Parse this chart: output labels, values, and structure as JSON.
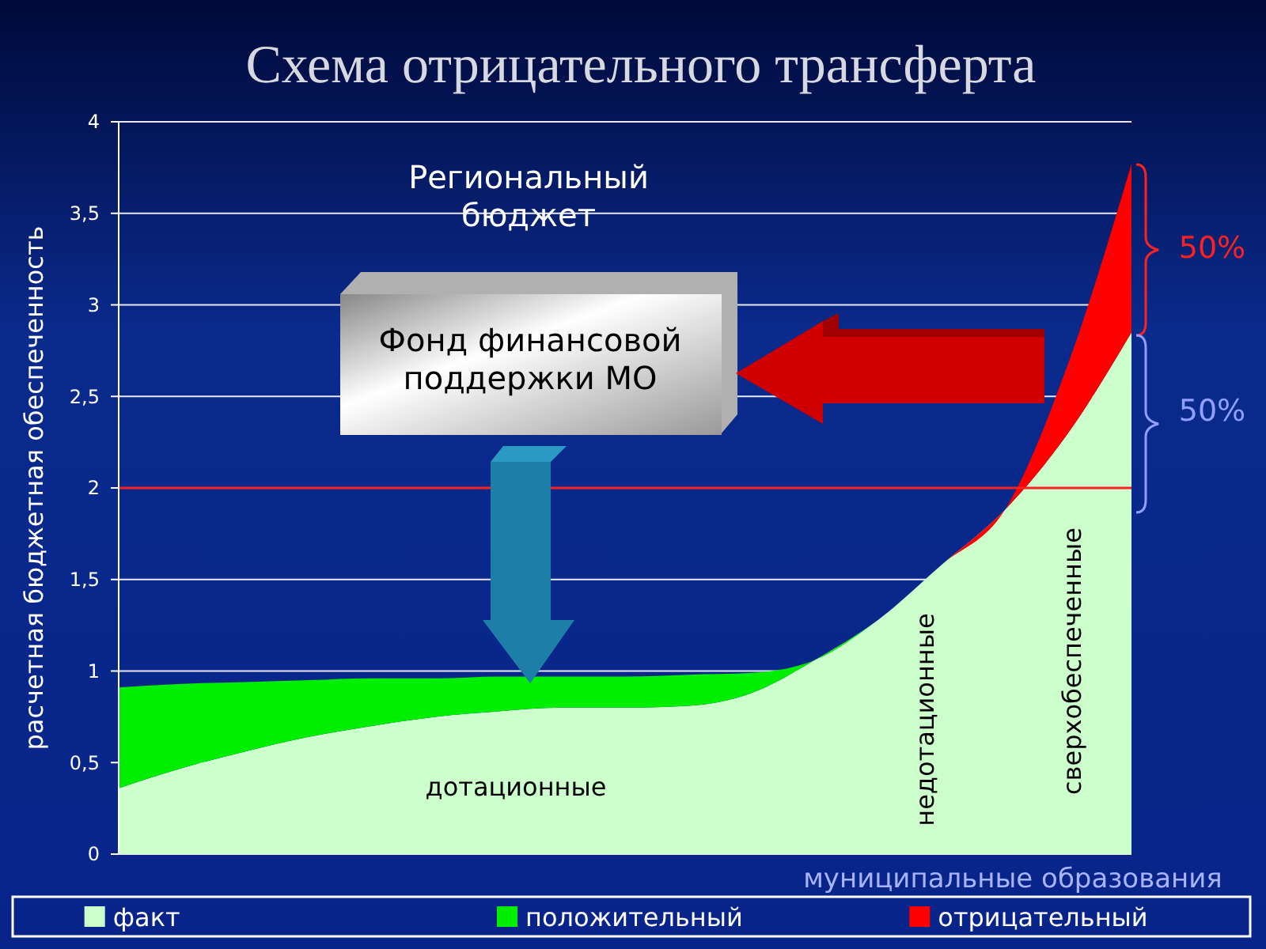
{
  "chart_data": {
    "type": "area",
    "title": "Схема отрицательного трансферта",
    "ylabel": "расчетная бюджетная обеспеченность",
    "xlabel": "муниципальные образования",
    "categories": [
      null,
      null,
      null,
      null,
      null,
      null,
      null,
      null,
      null,
      null,
      null,
      null,
      null,
      null,
      null,
      null,
      null
    ],
    "stacked": true,
    "series": [
      {
        "name": "факт",
        "color": "#ccffcc",
        "values": [
          0.36,
          0.47,
          0.56,
          0.64,
          0.7,
          0.75,
          0.78,
          0.8,
          0.8,
          0.81,
          0.88,
          1.06,
          1.28,
          1.58,
          1.88,
          2.3,
          2.85
        ]
      },
      {
        "name": "положительный",
        "color": "#00ee00",
        "values": [
          0.55,
          0.46,
          0.38,
          0.31,
          0.26,
          0.21,
          0.19,
          0.17,
          0.17,
          0.17,
          0.11,
          0,
          0,
          0,
          0,
          0,
          0
        ]
      },
      {
        "name": "отрицательный",
        "color": "#ff0000",
        "values": [
          0,
          0,
          0,
          0,
          0,
          0,
          0,
          0,
          0,
          0,
          0,
          0,
          0,
          0,
          0,
          0.38,
          0.92
        ]
      }
    ],
    "ylim": [
      0,
      4
    ],
    "yticks": [
      0,
      {
        "value": 0.5,
        "label": "0,5"
      },
      1,
      {
        "value": 1.5,
        "label": "1,5"
      },
      2,
      {
        "value": 2.5,
        "label": "2,5"
      },
      3,
      {
        "value": 3.5,
        "label": "3,5"
      },
      4
    ],
    "grid": "y",
    "legend": "bottom",
    "ref_lines": [
      {
        "axis": "y",
        "value": 2,
        "color": "#ff2020"
      }
    ],
    "annotations": [
      "Региональный бюджет",
      "Фонд финансовой поддержки МО",
      "дотационные",
      "недотационные",
      "сверхобеспеченные",
      "50%",
      "50%"
    ]
  }
}
